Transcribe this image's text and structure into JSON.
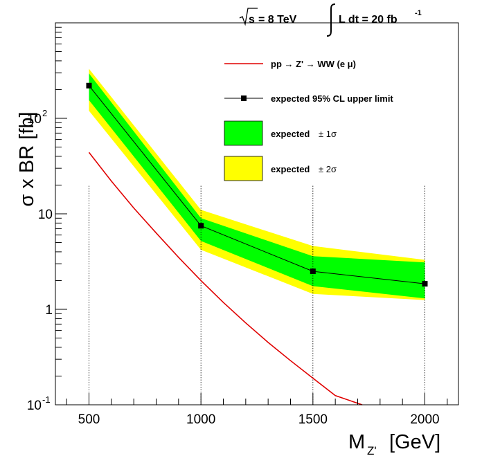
{
  "chart_data": {
    "type": "line",
    "header": {
      "sqrt_s_label": "s",
      "energy_text": "= 8 TeV",
      "lumi_text": "L dt = 20 fb",
      "lumi_exponent": "-1"
    },
    "ylabel": "σ x BR [fb]",
    "xlabel_main": "M",
    "xlabel_sub": "Z'",
    "xlabel_unit": "[GeV]",
    "xlim": [
      350,
      2150
    ],
    "ylim": [
      0.1,
      1000
    ],
    "y_scale": "log",
    "x_ticks": [
      500,
      1000,
      1500,
      2000
    ],
    "x_tick_labels": [
      "500",
      "1000",
      "1500",
      "2000"
    ],
    "y_tick_labels": [
      {
        "value": 100,
        "base": "10",
        "exp": "2"
      },
      {
        "value": 10,
        "base": "10",
        "exp": ""
      },
      {
        "value": 1,
        "base": "1",
        "exp": ""
      },
      {
        "value": 0.1,
        "base": "10",
        "exp": "-1"
      }
    ],
    "vertical_gridlines": [
      500,
      1000,
      1500,
      2000
    ],
    "legend_position": "top-right",
    "legend": {
      "theory": "pp → Z' → WW (e μ)",
      "expected": "expected 95% CL upper limit",
      "band1_text": "expected",
      "band1_sym": "± 1σ",
      "band2_text": "expected",
      "band2_sym": "± 2σ"
    },
    "colors": {
      "theory": "#e00000",
      "band1": "#00ff00",
      "band2": "#ffff00",
      "expected": "#000000"
    },
    "series": [
      {
        "name": "expected 95% CL upper limit",
        "x": [
          500,
          1000,
          1500,
          2000
        ],
        "y": [
          220,
          7.5,
          2.5,
          1.85
        ]
      }
    ],
    "band_1sigma": {
      "x": [
        500,
        1000,
        1500,
        2000
      ],
      "low": [
        155,
        5.2,
        1.75,
        1.3
      ],
      "high": [
        295,
        9.0,
        3.6,
        3.1
      ]
    },
    "band_2sigma": {
      "x": [
        500,
        1000,
        1500,
        2000
      ],
      "low": [
        120,
        4.2,
        1.45,
        1.25
      ],
      "high": [
        330,
        11.0,
        4.6,
        3.3
      ]
    },
    "theory_curve": {
      "name": "pp → Z' → WW (e μ)",
      "x": [
        500,
        600,
        700,
        800,
        900,
        1000,
        1100,
        1200,
        1300,
        1400,
        1500,
        1600,
        1700,
        1730
      ],
      "y": [
        44,
        22,
        11.5,
        6.3,
        3.5,
        2.0,
        1.18,
        0.72,
        0.45,
        0.29,
        0.19,
        0.125,
        0.083,
        0.1
      ]
    }
  }
}
